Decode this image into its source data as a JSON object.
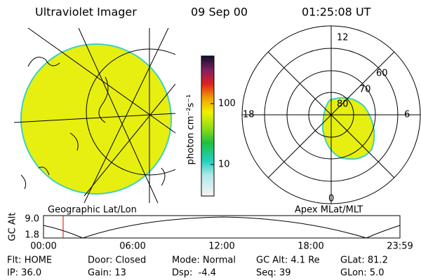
{
  "header": {
    "title": "Ultraviolet Imager",
    "date": "09 Sep 00",
    "time": "01:25:08 UT"
  },
  "left_panel": {
    "label": "Geographic Lat/Lon"
  },
  "colorbar": {
    "label": "photon cm⁻²s⁻¹",
    "ticks": [
      "100",
      "10"
    ]
  },
  "polar_panel": {
    "label": "Apex MLat/MLT",
    "mlt_labels": [
      "12",
      "18",
      "6",
      "0"
    ],
    "lat_labels": [
      "60",
      "70",
      "80"
    ]
  },
  "altitude_plot": {
    "ylabel": "GC Alt",
    "yticks": [
      "9.0",
      "1.8"
    ],
    "xticks": [
      "00:00",
      "06:00",
      "12:00",
      "18:00",
      "23:59"
    ]
  },
  "info": {
    "rows": [
      [
        "Flt: HOME",
        "Door: Closed",
        "Mode: Normal",
        "GC Alt: 4.1 Re",
        "GLat: 81.2"
      ],
      [
        "IP: 36.0",
        "Gain: 13",
        "Dsp:  -4.4",
        "Seq: 39",
        "GLon: 5.0"
      ]
    ]
  }
}
